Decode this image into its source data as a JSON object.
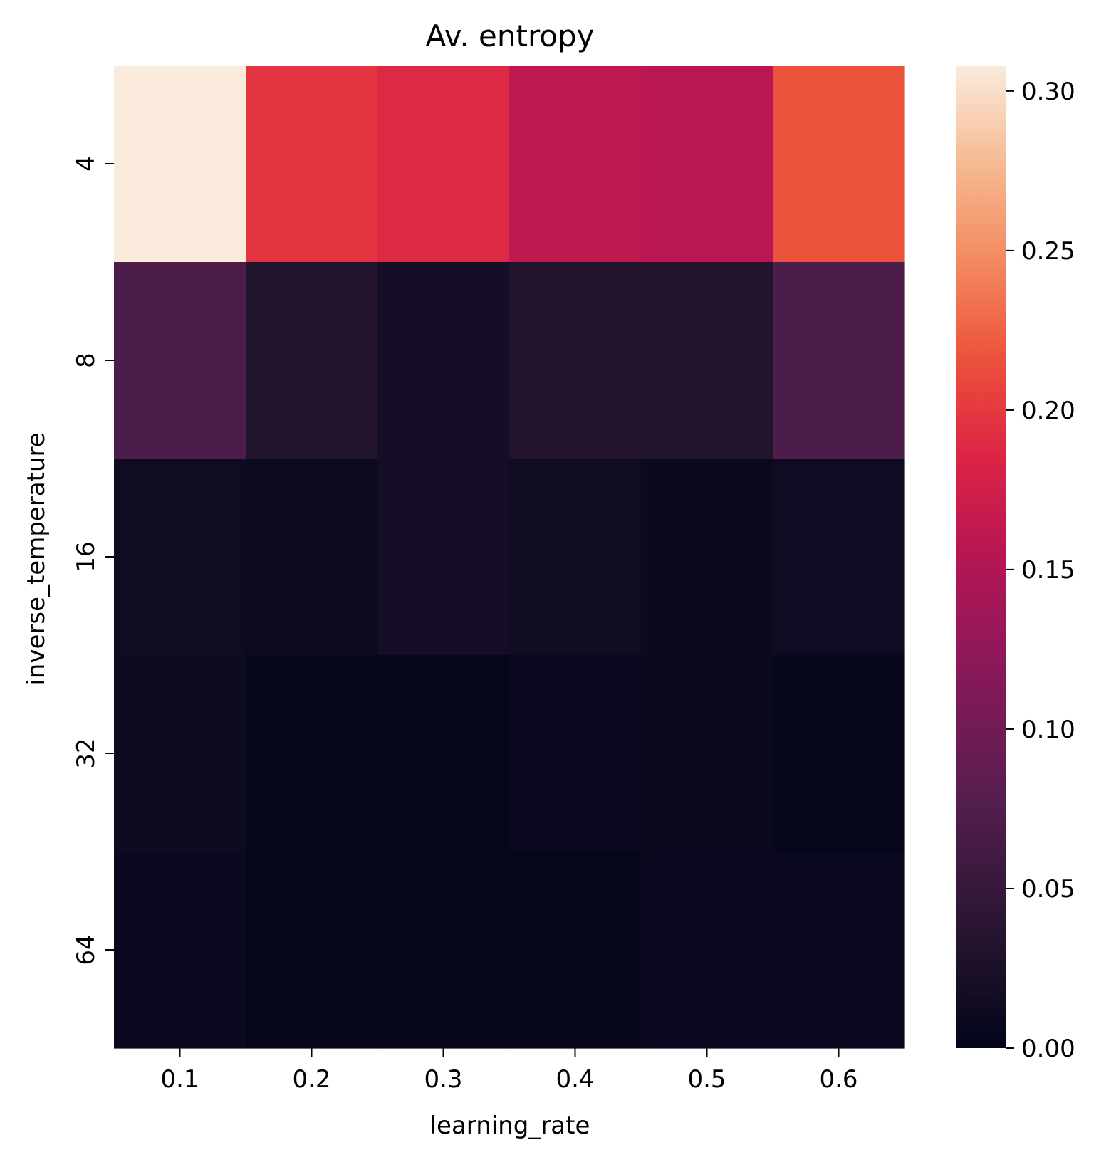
{
  "chart_data": {
    "type": "heatmap",
    "title": "Av. entropy",
    "xlabel": "learning_rate",
    "ylabel": "inverse_temperature",
    "x_categories": [
      "0.1",
      "0.2",
      "0.3",
      "0.4",
      "0.5",
      "0.6"
    ],
    "y_categories": [
      "4",
      "8",
      "16",
      "32",
      "64"
    ],
    "values": [
      [
        0.308,
        0.197,
        0.188,
        0.163,
        0.158,
        0.217
      ],
      [
        0.07,
        0.033,
        0.02,
        0.033,
        0.033,
        0.07
      ],
      [
        0.014,
        0.01,
        0.018,
        0.015,
        0.009,
        0.013
      ],
      [
        0.011,
        0.004,
        0.004,
        0.006,
        0.009,
        0.004
      ],
      [
        0.008,
        0.004,
        0.004,
        0.004,
        0.007,
        0.006
      ]
    ],
    "colorbar": {
      "min": 0.0,
      "max": 0.308,
      "ticks": [
        "0.00",
        "0.05",
        "0.10",
        "0.15",
        "0.20",
        "0.25",
        "0.30"
      ],
      "colormap": "rocket"
    }
  }
}
